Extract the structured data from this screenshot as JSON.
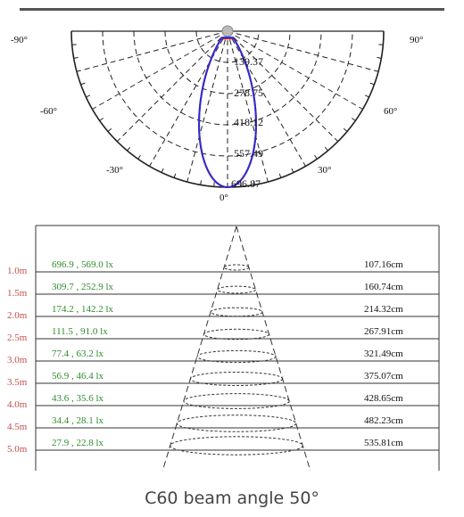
{
  "polar": {
    "angle_labels": {
      "left_90": "-90°",
      "right_90": "90°",
      "left_60": "-60°",
      "right_60": "60°",
      "left_30": "-30°",
      "right_30": "30°",
      "zero": "0°"
    },
    "ring_labels": [
      "139.37",
      "278.75",
      "418.12",
      "557.49",
      "696.87"
    ],
    "colors": {
      "curve_a": "#2b2bd6",
      "curve_b": "#d42020",
      "grid": "#222222",
      "label": "#111111"
    }
  },
  "illuminance": {
    "rows": [
      {
        "distance": "1.0m",
        "lux": "696.9 , 569.0 lx",
        "diameter": "107.16cm"
      },
      {
        "distance": "1.5m",
        "lux": "309.7 , 252.9 lx",
        "diameter": "160.74cm"
      },
      {
        "distance": "2.0m",
        "lux": "174.2 , 142.2 lx",
        "diameter": "214.32cm"
      },
      {
        "distance": "2.5m",
        "lux": "111.5 , 91.0 lx",
        "diameter": "267.91cm"
      },
      {
        "distance": "3.0m",
        "lux": "77.4 , 63.2 lx",
        "diameter": "321.49cm"
      },
      {
        "distance": "3.5m",
        "lux": "56.9 , 46.4 lx",
        "diameter": "375.07cm"
      },
      {
        "distance": "4.0m",
        "lux": "43.6 , 35.6 lx",
        "diameter": "428.65cm"
      },
      {
        "distance": "4.5m",
        "lux": "34.4 , 28.1 lx",
        "diameter": "482.23cm"
      },
      {
        "distance": "5.0m",
        "lux": "27.9 , 22.8 lx",
        "diameter": "535.81cm"
      }
    ],
    "colors": {
      "distance": "#c0504d",
      "lux": "#2e8b2e",
      "diameter": "#111111"
    }
  },
  "caption": "C60 beam angle 50°"
}
